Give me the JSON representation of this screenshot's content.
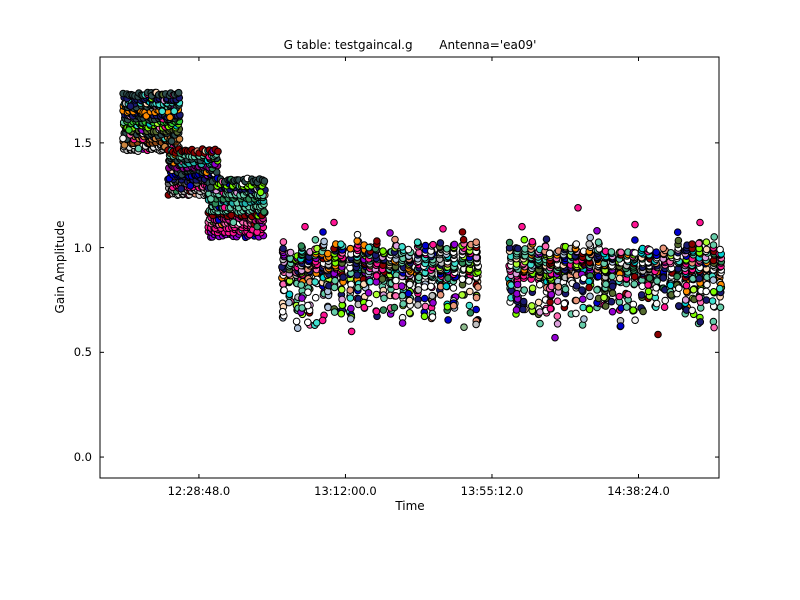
{
  "window": {
    "background": "#ffffff",
    "title": "G table: testgaincal.g       Antenna='ea09'"
  },
  "chart_data": {
    "type": "scatter",
    "title": "G table: testgaincal.g       Antenna='ea09'",
    "xlabel": "Time",
    "ylabel": "Gain Amplitude",
    "grid": false,
    "legend": false,
    "frame_color": "#000000",
    "x_axis": {
      "tick_labels": [
        "12:28:48.0",
        "13:12:00.0",
        "13:55:12.0",
        "14:38:24.0"
      ],
      "tick_seconds": [
        0,
        2592,
        5184,
        7776
      ],
      "range_seconds": [
        -1750,
        9200
      ],
      "ticks_on_top_and_bottom": true
    },
    "y_axis": {
      "tick_labels": [
        "0.0",
        "0.5",
        "1.0",
        "1.5"
      ],
      "tick_values": [
        0.0,
        0.5,
        1.0,
        1.5
      ],
      "range": [
        -0.1,
        1.91
      ],
      "ticks_on_left_and_right": true
    },
    "marker": {
      "shape": "circle",
      "radius_px": 3.3,
      "edge_color": "#000000",
      "edge_width": 1
    },
    "palette": [
      "#ff1493",
      "#ff1493",
      "#66cdaa",
      "#66cdaa",
      "#66cdaa",
      "#191970",
      "#191970",
      "#7cfc00",
      "#adff2f",
      "#ffffff",
      "#ffffff",
      "#c0c0c0",
      "#8b0000",
      "#9400d3",
      "#40e0d0",
      "#ff8c00",
      "#ffdab9",
      "#0000cd",
      "#2e8b57",
      "#00ced1",
      "#ff69b4",
      "#dda0dd",
      "#b0c4de",
      "#556b2f",
      "#e9967a",
      "#f5f5f5"
    ],
    "scan_blocks": [
      {
        "name": "scan-1",
        "t_start": -1343,
        "t_end": -335,
        "amp_min": 1.46,
        "amp_max": 1.74,
        "points_per_row": 30,
        "row_colors": [
          "#c0c0c0",
          "#e8e8e8",
          "#8b4513",
          "#cd853f",
          "#2f4f4f",
          "#556b2f",
          "#7cfc00",
          "#32cd32",
          "#2f4f4f",
          "#191970",
          "#ff8c00",
          "#2f4f4f",
          "#40e0d0",
          "#191970",
          "#2f4f4f"
        ]
      },
      {
        "name": "scan-2",
        "t_start": -547,
        "t_end": 337,
        "amp_min": 1.25,
        "amp_max": 1.47,
        "points_per_row": 26,
        "row_colors": [
          "#dcdcdc",
          "#c0c0c0",
          "#ff1493",
          "#696969",
          "#191970",
          "#0000cd",
          "#2f4f4f",
          "#8b008b",
          "#20b2aa",
          "#2f4f4f",
          "#66cdaa",
          "#8b0000"
        ]
      },
      {
        "name": "scan-3",
        "t_start": 161,
        "t_end": 1169,
        "amp_min": 1.05,
        "amp_max": 1.33,
        "points_per_row": 28,
        "row_colors": [
          "#9400d3",
          "#ff1493",
          "#ff1493",
          "#ff69b4",
          "#c71585",
          "#8b0000",
          "#66cdaa",
          "#66cdaa",
          "#20b2aa",
          "#2e8b57",
          "#66cdaa",
          "#191970",
          "#7cfc00",
          "#2f4f4f"
        ]
      }
    ],
    "column_groups": [
      {
        "t": 1611,
        "cols": 3
      },
      {
        "t": 2009,
        "cols": 4
      },
      {
        "t": 2407,
        "cols": 3
      },
      {
        "t": 2805,
        "cols": 3
      },
      {
        "t": 3203,
        "cols": 4
      },
      {
        "t": 3601,
        "cols": 3
      },
      {
        "t": 3999,
        "cols": 3
      },
      {
        "t": 4397,
        "cols": 3
      },
      {
        "t": 4795,
        "cols": 3
      },
      {
        "t": 5627,
        "cols": 3
      },
      {
        "t": 6016,
        "cols": 3
      },
      {
        "t": 6405,
        "cols": 4
      },
      {
        "t": 6794,
        "cols": 3
      },
      {
        "t": 7183,
        "cols": 3
      },
      {
        "t": 7573,
        "cols": 3
      },
      {
        "t": 7962,
        "cols": 3
      },
      {
        "t": 8351,
        "cols": 3
      },
      {
        "t": 8740,
        "cols": 3
      },
      {
        "t": 9041,
        "cols": 4
      }
    ],
    "column_profile": {
      "col_spacing_seconds": 124,
      "band_amp_center": 0.92,
      "band_points_min": 13,
      "band_points_max": 22,
      "tail_amp_min": 0.6,
      "tail_points_min": 4,
      "tail_points_max": 12
    },
    "outliers_high": [
      {
        "t": 1876,
        "amp": 1.1,
        "color": "#ff1493"
      },
      {
        "t": 2389,
        "amp": 1.12,
        "color": "#ff1493"
      },
      {
        "t": 3380,
        "amp": 1.07,
        "color": "#9400d3"
      },
      {
        "t": 4318,
        "amp": 1.09,
        "color": "#ff1493"
      },
      {
        "t": 5715,
        "amp": 1.1,
        "color": "#ff1493"
      },
      {
        "t": 6706,
        "amp": 1.19,
        "color": "#ff1493"
      },
      {
        "t": 7042,
        "amp": 1.08,
        "color": "#9400d3"
      },
      {
        "t": 7714,
        "amp": 1.11,
        "color": "#ff1493"
      },
      {
        "t": 8864,
        "amp": 1.12,
        "color": "#ff1493"
      }
    ],
    "outliers_low": [
      {
        "t": 2700,
        "amp": 0.6,
        "color": "#ff1493"
      },
      {
        "t": 4689,
        "amp": 0.62,
        "color": "#8fbc8f"
      },
      {
        "t": 6299,
        "amp": 0.57,
        "color": "#9400d3"
      },
      {
        "t": 8121,
        "amp": 0.585,
        "color": "#8b0000"
      }
    ],
    "seed": 20
  }
}
